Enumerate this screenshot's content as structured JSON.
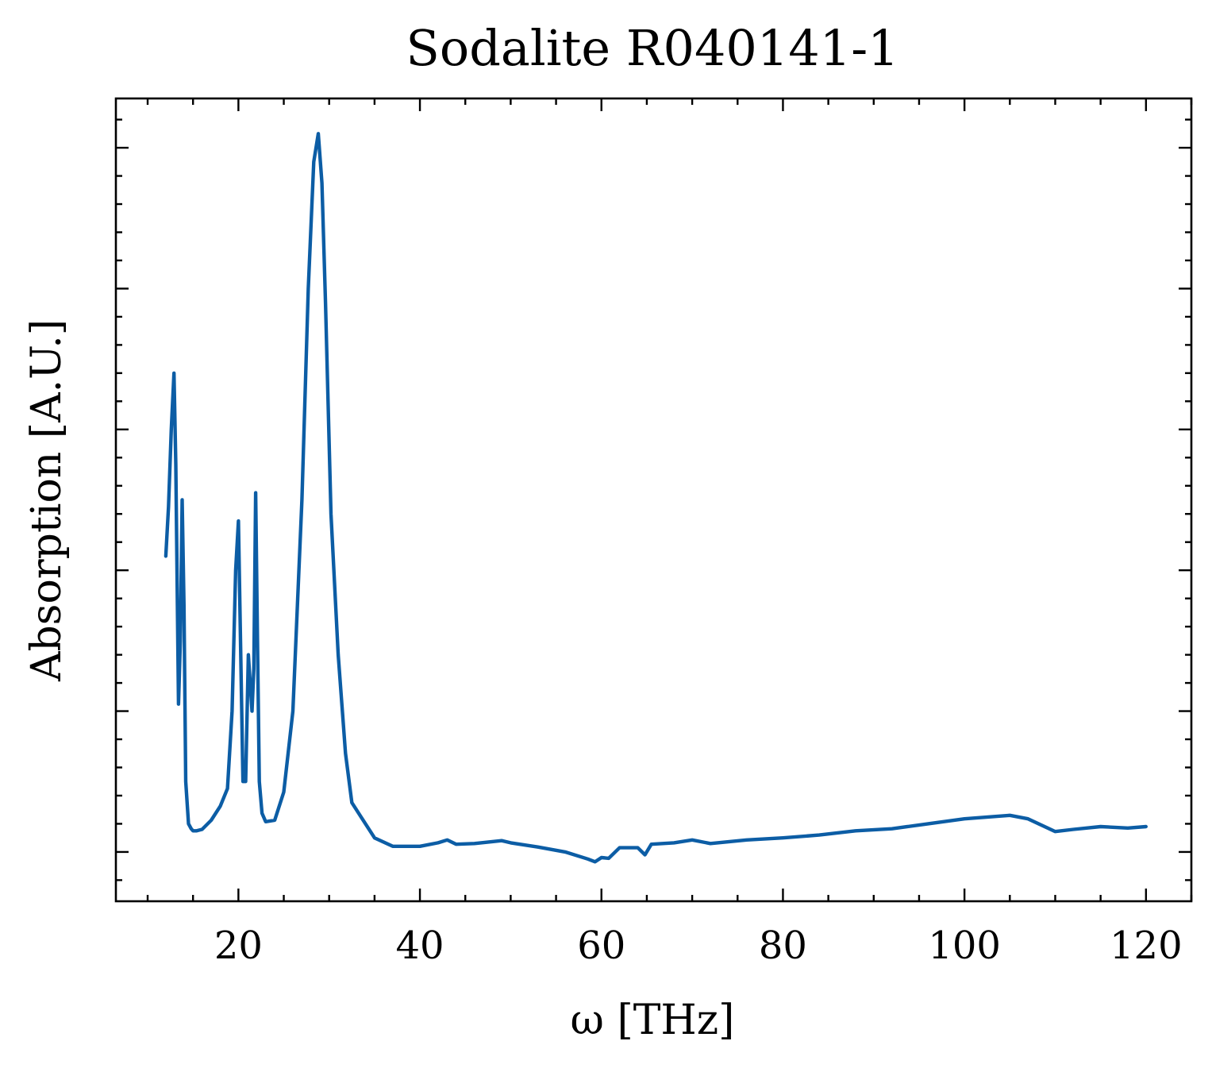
{
  "chart_data": {
    "type": "line",
    "title": "Sodalite R040141-1",
    "xlabel": "ω [THz]",
    "ylabel": "Absorption [A.U.]",
    "xlim": [
      6.5,
      125
    ],
    "ylim": [
      -0.07,
      1.07
    ],
    "xticks": [
      20,
      40,
      60,
      80,
      100,
      120
    ],
    "xtick_labels": [
      "20",
      "40",
      "60",
      "80",
      "100",
      "120"
    ],
    "x_minor_step": 5,
    "yticks": [
      0.0,
      0.2,
      0.4,
      0.6,
      0.8,
      1.0
    ],
    "ytick_labels_visible": false,
    "y_minor_step": 0.04,
    "grid": false,
    "legend": "none",
    "series": [
      {
        "color": "#0C5DA5",
        "x": [
          12.0,
          12.3,
          12.6,
          12.9,
          13.1,
          13.4,
          13.6,
          13.8,
          14.0,
          14.2,
          14.5,
          14.8,
          15.0,
          15.4,
          16.0,
          17.0,
          18.0,
          18.8,
          19.3,
          19.7,
          20.0,
          20.2,
          20.5,
          20.8,
          21.1,
          21.5,
          21.7,
          21.9,
          22.1,
          22.3,
          22.6,
          23.0,
          24.0,
          25.0,
          26.0,
          27.0,
          27.7,
          28.3,
          28.8,
          29.2,
          29.6,
          30.2,
          31.0,
          31.8,
          32.5,
          33.5,
          35.0,
          37.0,
          40.0,
          42.0,
          43.0,
          44.0,
          46.0,
          49.0,
          50.0,
          53.0,
          56.0,
          58.5,
          59.3,
          60.0,
          60.8,
          62.0,
          64.0,
          64.8,
          65.5,
          68.0,
          70.0,
          72.0,
          76.0,
          80.0,
          84.0,
          88.0,
          92.0,
          96.0,
          100.0,
          103.0,
          105.0,
          107.0,
          109.0,
          110.0,
          112.0,
          115.0,
          118.0,
          120.0
        ],
        "y": [
          0.42,
          0.49,
          0.6,
          0.68,
          0.55,
          0.21,
          0.3,
          0.5,
          0.35,
          0.1,
          0.04,
          0.033,
          0.03,
          0.03,
          0.032,
          0.045,
          0.065,
          0.09,
          0.2,
          0.4,
          0.47,
          0.32,
          0.1,
          0.1,
          0.28,
          0.2,
          0.26,
          0.51,
          0.3,
          0.1,
          0.055,
          0.043,
          0.045,
          0.085,
          0.2,
          0.5,
          0.8,
          0.98,
          1.02,
          0.95,
          0.78,
          0.48,
          0.28,
          0.14,
          0.07,
          0.05,
          0.02,
          0.008,
          0.008,
          0.013,
          0.017,
          0.011,
          0.012,
          0.016,
          0.013,
          0.007,
          0.0,
          -0.01,
          -0.014,
          -0.008,
          -0.009,
          0.006,
          0.006,
          -0.004,
          0.011,
          0.013,
          0.017,
          0.012,
          0.017,
          0.02,
          0.024,
          0.03,
          0.033,
          0.04,
          0.047,
          0.05,
          0.052,
          0.047,
          0.035,
          0.029,
          0.032,
          0.036,
          0.034,
          0.036
        ]
      }
    ]
  }
}
